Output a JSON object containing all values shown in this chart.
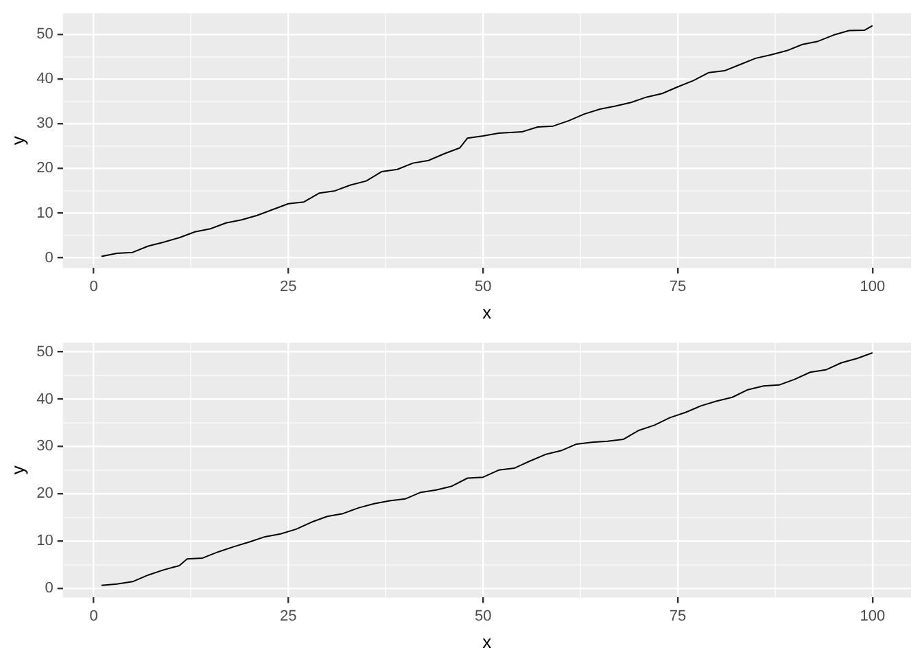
{
  "chart_data": [
    {
      "type": "line",
      "xlabel": "x",
      "ylabel": "y",
      "grid": true,
      "xlim": [
        -3.95,
        104.95
      ],
      "ylim": [
        -2.3,
        54.8
      ],
      "xticks": [
        0,
        {
          "value": 12.5,
          "label": null
        },
        25,
        {
          "value": 37.5,
          "label": null
        },
        50,
        {
          "value": 62.5,
          "label": null
        },
        75,
        {
          "value": 87.5,
          "label": null
        },
        100
      ],
      "yticks": [
        0,
        {
          "value": 5,
          "label": null
        },
        10,
        {
          "value": 15,
          "label": null
        },
        20,
        {
          "value": 25,
          "label": null
        },
        30,
        {
          "value": 35,
          "label": null
        },
        40,
        {
          "value": 45,
          "label": null
        },
        50
      ],
      "series": [
        {
          "color": "#000000",
          "x": [
            1,
            3,
            5,
            7,
            9,
            11,
            13,
            15,
            17,
            19,
            21,
            23,
            25,
            27,
            29,
            31,
            33,
            35,
            37,
            39,
            41,
            43,
            45,
            47,
            48,
            50,
            52,
            55,
            57,
            59,
            61,
            63,
            65,
            67,
            69,
            71,
            73,
            75,
            77,
            79,
            81,
            83,
            85,
            87,
            89,
            91,
            93,
            95,
            97,
            99,
            100
          ],
          "values": [
            0.3,
            1.0,
            1.2,
            2.6,
            3.5,
            4.5,
            5.8,
            6.5,
            7.8,
            8.5,
            9.5,
            10.8,
            12.1,
            12.5,
            14.5,
            15.0,
            16.3,
            17.2,
            19.3,
            19.8,
            21.2,
            21.8,
            23.3,
            24.6,
            26.8,
            27.3,
            27.9,
            28.2,
            29.3,
            29.5,
            30.7,
            32.2,
            33.3,
            34.0,
            34.8,
            36.0,
            36.8,
            38.3,
            39.7,
            41.5,
            41.9,
            43.3,
            44.7,
            45.5,
            46.4,
            47.8,
            48.5,
            49.9,
            50.9,
            51.0,
            52.0
          ]
        }
      ]
    },
    {
      "type": "line",
      "xlabel": "x",
      "ylabel": "y",
      "grid": true,
      "xlim": [
        -3.95,
        104.95
      ],
      "ylim": [
        -1.95,
        51.95
      ],
      "xticks": [
        0,
        {
          "value": 12.5,
          "label": null
        },
        25,
        {
          "value": 37.5,
          "label": null
        },
        50,
        {
          "value": 62.5,
          "label": null
        },
        75,
        {
          "value": 87.5,
          "label": null
        },
        100
      ],
      "yticks": [
        0,
        {
          "value": 5,
          "label": null
        },
        10,
        {
          "value": 15,
          "label": null
        },
        20,
        {
          "value": 25,
          "label": null
        },
        30,
        {
          "value": 35,
          "label": null
        },
        40,
        {
          "value": 45,
          "label": null
        },
        50
      ],
      "series": [
        {
          "color": "#000000",
          "x": [
            1,
            3,
            5,
            7,
            9,
            11,
            12,
            14,
            16,
            18,
            20,
            22,
            24,
            26,
            28,
            30,
            32,
            34,
            36,
            38,
            40,
            42,
            44,
            46,
            48,
            50,
            52,
            54,
            56,
            58,
            60,
            62,
            64,
            66,
            68,
            70,
            72,
            74,
            76,
            78,
            80,
            82,
            84,
            86,
            88,
            90,
            92,
            94,
            96,
            98,
            100
          ],
          "values": [
            0.6,
            0.9,
            1.4,
            2.8,
            3.9,
            4.8,
            6.2,
            6.4,
            7.7,
            8.8,
            9.8,
            10.9,
            11.5,
            12.5,
            14.0,
            15.2,
            15.8,
            17.0,
            17.9,
            18.5,
            18.9,
            20.3,
            20.8,
            21.6,
            23.3,
            23.5,
            25.0,
            25.4,
            26.9,
            28.3,
            29.1,
            30.5,
            30.9,
            31.1,
            31.5,
            33.4,
            34.5,
            36.1,
            37.2,
            38.6,
            39.6,
            40.4,
            42.0,
            42.8,
            43.0,
            44.2,
            45.7,
            46.2,
            47.7,
            48.6,
            49.8
          ]
        }
      ]
    }
  ]
}
